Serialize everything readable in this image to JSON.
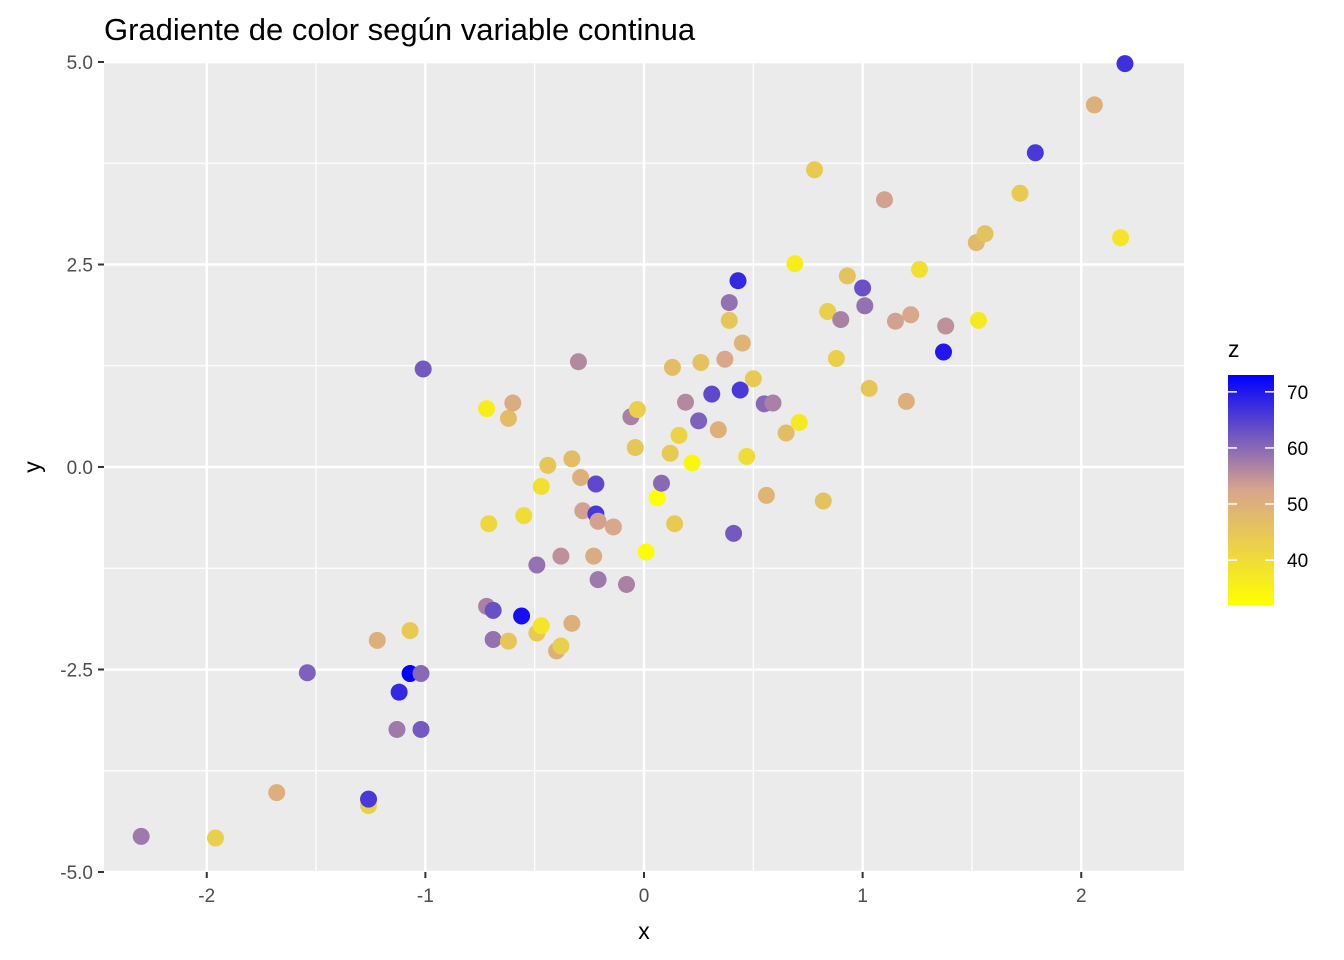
{
  "chart_data": {
    "type": "scatter",
    "title": "Gradiente de color según variable continua",
    "xlabel": "x",
    "ylabel": "y",
    "xlim": [
      -2.47,
      2.47
    ],
    "ylim": [
      -5.0,
      5.0
    ],
    "x_ticks": [
      -2,
      -1,
      0,
      1,
      2
    ],
    "x_tick_labels": [
      "-2",
      "-1",
      "0",
      "1",
      "2"
    ],
    "y_ticks": [
      -5,
      -2.5,
      0,
      2.5,
      5
    ],
    "y_tick_labels": [
      "-5.0",
      "-2.5",
      "0.0",
      "2.5",
      "5.0"
    ],
    "grid": true,
    "legend": {
      "title": "z",
      "placement": "right",
      "type": "colorbar",
      "range": [
        32,
        73
      ],
      "ticks": [
        40,
        50,
        60,
        70
      ],
      "tick_labels": [
        "40",
        "50",
        "60",
        "70"
      ],
      "low_color": "#ffff00",
      "mid_color": "#d8a58c",
      "high_color": "#0000ff"
    },
    "panel_color": "#ebebeb",
    "grid_color": "#ffffff",
    "points": [
      {
        "x": -2.3,
        "y": -4.56,
        "z": 58
      },
      {
        "x": -1.96,
        "y": -4.58,
        "z": 43
      },
      {
        "x": -1.68,
        "y": -4.02,
        "z": 50
      },
      {
        "x": -1.54,
        "y": -2.54,
        "z": 61
      },
      {
        "x": -1.26,
        "y": -4.18,
        "z": 43
      },
      {
        "x": -1.26,
        "y": -4.1,
        "z": 66
      },
      {
        "x": -1.22,
        "y": -2.14,
        "z": 50
      },
      {
        "x": -1.13,
        "y": -3.24,
        "z": 58
      },
      {
        "x": -1.12,
        "y": -2.78,
        "z": 68
      },
      {
        "x": -1.07,
        "y": -2.02,
        "z": 44
      },
      {
        "x": -1.07,
        "y": -2.55,
        "z": 73
      },
      {
        "x": -1.02,
        "y": -2.55,
        "z": 60
      },
      {
        "x": -1.02,
        "y": -3.24,
        "z": 62
      },
      {
        "x": -1.01,
        "y": 1.21,
        "z": 62
      },
      {
        "x": -0.72,
        "y": 0.72,
        "z": 36
      },
      {
        "x": -0.72,
        "y": -1.72,
        "z": 57
      },
      {
        "x": -0.71,
        "y": -0.7,
        "z": 41
      },
      {
        "x": -0.69,
        "y": -1.77,
        "z": 63
      },
      {
        "x": -0.69,
        "y": -2.13,
        "z": 59
      },
      {
        "x": -0.62,
        "y": -2.15,
        "z": 45
      },
      {
        "x": -0.62,
        "y": 0.6,
        "z": 47
      },
      {
        "x": -0.6,
        "y": 0.79,
        "z": 51
      },
      {
        "x": -0.56,
        "y": -1.84,
        "z": 71
      },
      {
        "x": -0.55,
        "y": -0.6,
        "z": 40
      },
      {
        "x": -0.49,
        "y": -1.21,
        "z": 59
      },
      {
        "x": -0.49,
        "y": -2.05,
        "z": 44
      },
      {
        "x": -0.47,
        "y": -1.96,
        "z": 38
      },
      {
        "x": -0.47,
        "y": -0.24,
        "z": 39
      },
      {
        "x": -0.44,
        "y": 0.02,
        "z": 45
      },
      {
        "x": -0.4,
        "y": -2.27,
        "z": 50
      },
      {
        "x": -0.38,
        "y": -1.1,
        "z": 55
      },
      {
        "x": -0.38,
        "y": -2.21,
        "z": 43
      },
      {
        "x": -0.33,
        "y": 0.1,
        "z": 47
      },
      {
        "x": -0.33,
        "y": -1.93,
        "z": 50
      },
      {
        "x": -0.3,
        "y": 1.3,
        "z": 56
      },
      {
        "x": -0.29,
        "y": -0.13,
        "z": 50
      },
      {
        "x": -0.28,
        "y": -0.54,
        "z": 53
      },
      {
        "x": -0.23,
        "y": -1.1,
        "z": 51
      },
      {
        "x": -0.22,
        "y": -0.21,
        "z": 64
      },
      {
        "x": -0.22,
        "y": -0.58,
        "z": 66
      },
      {
        "x": -0.21,
        "y": -1.39,
        "z": 58
      },
      {
        "x": -0.21,
        "y": -0.67,
        "z": 53
      },
      {
        "x": -0.14,
        "y": -0.74,
        "z": 52
      },
      {
        "x": -0.08,
        "y": -1.45,
        "z": 57
      },
      {
        "x": -0.06,
        "y": 0.62,
        "z": 57
      },
      {
        "x": -0.04,
        "y": 0.24,
        "z": 45
      },
      {
        "x": -0.03,
        "y": 0.71,
        "z": 43
      },
      {
        "x": 0.01,
        "y": -1.05,
        "z": 33
      },
      {
        "x": 0.06,
        "y": -0.38,
        "z": 32
      },
      {
        "x": 0.08,
        "y": -0.2,
        "z": 60
      },
      {
        "x": 0.12,
        "y": 0.17,
        "z": 44
      },
      {
        "x": 0.13,
        "y": 1.23,
        "z": 47
      },
      {
        "x": 0.14,
        "y": -0.7,
        "z": 44
      },
      {
        "x": 0.16,
        "y": 0.39,
        "z": 42
      },
      {
        "x": 0.19,
        "y": 0.8,
        "z": 56
      },
      {
        "x": 0.22,
        "y": 0.05,
        "z": 34
      },
      {
        "x": 0.25,
        "y": 0.57,
        "z": 61
      },
      {
        "x": 0.26,
        "y": 1.29,
        "z": 46
      },
      {
        "x": 0.31,
        "y": 0.9,
        "z": 64
      },
      {
        "x": 0.34,
        "y": 0.46,
        "z": 50
      },
      {
        "x": 0.37,
        "y": 1.33,
        "z": 52
      },
      {
        "x": 0.39,
        "y": 1.81,
        "z": 45
      },
      {
        "x": 0.39,
        "y": 2.03,
        "z": 59
      },
      {
        "x": 0.41,
        "y": -0.82,
        "z": 62
      },
      {
        "x": 0.43,
        "y": 2.3,
        "z": 68
      },
      {
        "x": 0.44,
        "y": 0.95,
        "z": 66
      },
      {
        "x": 0.45,
        "y": 1.53,
        "z": 49
      },
      {
        "x": 0.47,
        "y": 0.13,
        "z": 40
      },
      {
        "x": 0.5,
        "y": 1.09,
        "z": 44
      },
      {
        "x": 0.55,
        "y": 0.78,
        "z": 60
      },
      {
        "x": 0.56,
        "y": -0.35,
        "z": 49
      },
      {
        "x": 0.59,
        "y": 0.79,
        "z": 57
      },
      {
        "x": 0.65,
        "y": 0.42,
        "z": 47
      },
      {
        "x": 0.69,
        "y": 2.51,
        "z": 36
      },
      {
        "x": 0.71,
        "y": 0.55,
        "z": 37
      },
      {
        "x": 0.78,
        "y": 3.67,
        "z": 44
      },
      {
        "x": 0.82,
        "y": -0.42,
        "z": 46
      },
      {
        "x": 0.84,
        "y": 1.92,
        "z": 43
      },
      {
        "x": 0.88,
        "y": 1.34,
        "z": 43
      },
      {
        "x": 0.9,
        "y": 1.82,
        "z": 57
      },
      {
        "x": 0.93,
        "y": 2.36,
        "z": 46
      },
      {
        "x": 1.0,
        "y": 2.21,
        "z": 63
      },
      {
        "x": 1.01,
        "y": 1.99,
        "z": 59
      },
      {
        "x": 1.03,
        "y": 0.97,
        "z": 45
      },
      {
        "x": 1.1,
        "y": 3.3,
        "z": 53
      },
      {
        "x": 1.15,
        "y": 1.8,
        "z": 53
      },
      {
        "x": 1.2,
        "y": 0.81,
        "z": 50
      },
      {
        "x": 1.22,
        "y": 1.88,
        "z": 52
      },
      {
        "x": 1.26,
        "y": 2.44,
        "z": 39
      },
      {
        "x": 1.37,
        "y": 1.42,
        "z": 70
      },
      {
        "x": 1.38,
        "y": 1.74,
        "z": 55
      },
      {
        "x": 1.52,
        "y": 2.77,
        "z": 48
      },
      {
        "x": 1.53,
        "y": 1.81,
        "z": 37
      },
      {
        "x": 1.56,
        "y": 2.88,
        "z": 46
      },
      {
        "x": 1.72,
        "y": 3.38,
        "z": 44
      },
      {
        "x": 1.79,
        "y": 3.88,
        "z": 66
      },
      {
        "x": 2.06,
        "y": 4.47,
        "z": 50
      },
      {
        "x": 2.18,
        "y": 2.83,
        "z": 38
      },
      {
        "x": 2.2,
        "y": 4.98,
        "z": 67
      }
    ]
  }
}
